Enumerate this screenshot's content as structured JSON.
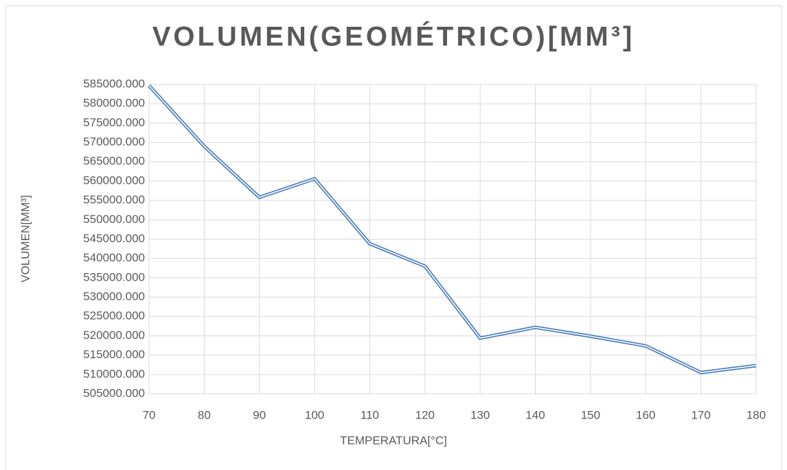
{
  "chart_data": {
    "type": "line",
    "title": "VOLUMEN(GEOMÉTRICO)[MM³]",
    "x_label": "TEMPERATURA[°C]",
    "y_label": "VOLUMEN[MM³]",
    "x": [
      70,
      80,
      90,
      100,
      110,
      120,
      130,
      140,
      150,
      160,
      170,
      180
    ],
    "series": [
      {
        "name": "VOLUMEN(GEOMÉTRICO)[MM³]",
        "color": "#4a7ebb",
        "values": [
          584700,
          569000,
          555800,
          560600,
          543800,
          538000,
          519400,
          522200,
          519900,
          517400,
          510500,
          512300
        ]
      }
    ],
    "xlim": [
      70,
      180
    ],
    "xticks": [
      70,
      80,
      90,
      100,
      110,
      120,
      130,
      140,
      150,
      160,
      170,
      180
    ],
    "ylim": [
      505000,
      585000
    ],
    "yticks": [
      {
        "value": 505000,
        "label": "505000.000"
      },
      {
        "value": 510000,
        "label": "510000.000"
      },
      {
        "value": 515000,
        "label": "515000.000"
      },
      {
        "value": 520000,
        "label": "520000.000"
      },
      {
        "value": 525000,
        "label": "525000.000"
      },
      {
        "value": 530000,
        "label": "530000.000"
      },
      {
        "value": 535000,
        "label": "535000.000"
      },
      {
        "value": 540000,
        "label": "540000.000"
      },
      {
        "value": 545000,
        "label": "545000.000"
      },
      {
        "value": 550000,
        "label": "550000.000"
      },
      {
        "value": 555000,
        "label": "555000.000"
      },
      {
        "value": 560000,
        "label": "560000.000"
      },
      {
        "value": 565000,
        "label": "565000.000"
      },
      {
        "value": 570000,
        "label": "570000.000"
      },
      {
        "value": 575000,
        "label": "575000.000"
      },
      {
        "value": 580000,
        "label": "580000.000"
      },
      {
        "value": 585000,
        "label": "585000.000"
      }
    ],
    "grid": true
  }
}
